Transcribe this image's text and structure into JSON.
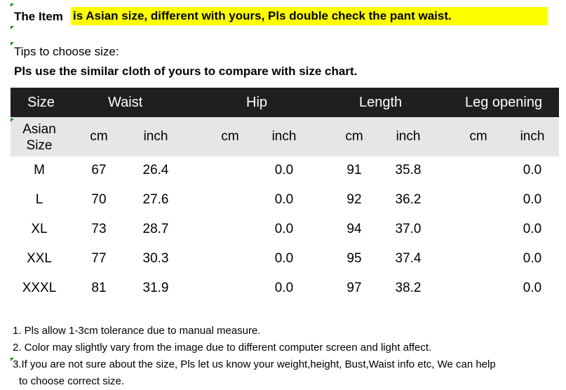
{
  "notice": {
    "lead": "The Item",
    "highlight": "is Asian size, different with yours, Pls double check the pant waist."
  },
  "tips_label": "Tips to choose size:",
  "instruction": "Pls use the similar cloth of yours to compare with size chart.",
  "table": {
    "headers": [
      "Size",
      "Waist",
      "Hip",
      "Length",
      "Leg opening"
    ],
    "size_sub_label": [
      "Asian",
      "Size"
    ],
    "units": [
      "cm",
      "inch",
      "cm",
      "inch",
      "cm",
      "inch",
      "cm",
      "inch"
    ],
    "rows": [
      {
        "size": "M",
        "values": [
          "67",
          "26.4",
          "",
          "0.0",
          "91",
          "35.8",
          "",
          "0.0"
        ]
      },
      {
        "size": "L",
        "values": [
          "70",
          "27.6",
          "",
          "0.0",
          "92",
          "36.2",
          "",
          "0.0"
        ]
      },
      {
        "size": "XL",
        "values": [
          "73",
          "28.7",
          "",
          "0.0",
          "94",
          "37.0",
          "",
          "0.0"
        ]
      },
      {
        "size": "XXL",
        "values": [
          "77",
          "30.3",
          "",
          "0.0",
          "95",
          "37.4",
          "",
          "0.0"
        ]
      },
      {
        "size": "XXXL",
        "values": [
          "81",
          "31.9",
          "",
          "0.0",
          "97",
          "38.2",
          "",
          "0.0"
        ]
      }
    ]
  },
  "notes": [
    "1. Pls allow 1-3cm tolerance due to manual measure.",
    "2. Color may slightly vary from the image due to different computer screen and light affect.",
    "3.If you are not sure about the size, Pls let us know your weight,height, Bust,Waist info etc, We can help",
    "to choose correct size."
  ],
  "colors": {
    "highlight": "#ffff00",
    "header_bg": "#1f1f1f",
    "subheader_bg": "#e6e6e6",
    "corner_mark": "#1a8a1a"
  }
}
